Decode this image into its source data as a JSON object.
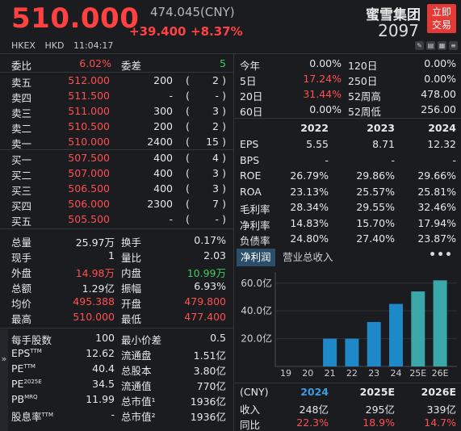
{
  "header": {
    "last_price": "510.000",
    "ref_price": "474.045(CNY)",
    "change_abs": "+39.400",
    "change_pct": "+8.37%",
    "stock_name": "蜜雪集团",
    "stock_code": "2097",
    "trade_button_line1": "立即",
    "trade_button_line2": "交易",
    "market": "HKEX",
    "currency": "HKD",
    "time": "11:04:17",
    "icons": [
      "edit-icon",
      "chart-icon",
      "grid-icon",
      "list-icon"
    ]
  },
  "order_book": {
    "commission_ratio_label": "委比",
    "commission_ratio_value": "6.02%",
    "commission_diff_label": "委差",
    "commission_diff_value": "5",
    "asks": [
      {
        "label": "卖五",
        "price": "512.000",
        "volume": "200",
        "open": "(",
        "count": "2",
        "close": ")"
      },
      {
        "label": "卖四",
        "price": "511.500",
        "volume": "-",
        "open": "(",
        "count": "-",
        "close": ")"
      },
      {
        "label": "卖三",
        "price": "511.000",
        "volume": "300",
        "open": "(",
        "count": "3",
        "close": ")"
      },
      {
        "label": "卖二",
        "price": "510.500",
        "volume": "200",
        "open": "(",
        "count": "2",
        "close": ")"
      },
      {
        "label": "卖一",
        "price": "510.000",
        "volume": "2400",
        "open": "(",
        "count": "15",
        "close": ")"
      }
    ],
    "bids": [
      {
        "label": "买一",
        "price": "507.500",
        "volume": "400",
        "open": "(",
        "count": "4",
        "close": ")"
      },
      {
        "label": "买二",
        "price": "507.000",
        "volume": "400",
        "open": "(",
        "count": "3",
        "close": ")"
      },
      {
        "label": "买三",
        "price": "506.500",
        "volume": "400",
        "open": "(",
        "count": "3",
        "close": ")"
      },
      {
        "label": "买四",
        "price": "506.000",
        "volume": "2300",
        "open": "(",
        "count": "7",
        "close": ")"
      },
      {
        "label": "买五",
        "price": "505.500",
        "volume": "-",
        "open": "(",
        "count": "-",
        "close": ")"
      }
    ]
  },
  "stats": [
    {
      "l1": "总量",
      "v1": "25.97万",
      "c1": "white",
      "l2": "换手",
      "v2": "0.17%",
      "c2": "white"
    },
    {
      "l1": "现手",
      "v1": "1",
      "c1": "white",
      "l2": "量比",
      "v2": "2.03",
      "c2": "white"
    },
    {
      "l1": "外盘",
      "v1": "14.98万",
      "c1": "red",
      "l2": "内盘",
      "v2": "10.99万",
      "c2": "green"
    },
    {
      "l1": "总额",
      "v1": "1.29亿",
      "c1": "white",
      "l2": "振幅",
      "v2": "6.93%",
      "c2": "white"
    },
    {
      "l1": "均价",
      "v1": "495.388",
      "c1": "red",
      "l2": "开盘",
      "v2": "479.800",
      "c2": "red"
    },
    {
      "l1": "最高",
      "v1": "510.000",
      "c1": "red",
      "l2": "最低",
      "v2": "477.400",
      "c2": "red"
    }
  ],
  "fundamentals": [
    {
      "l1": "每手股数",
      "v1": "100",
      "l2": "最小价差",
      "v2": "0.5"
    },
    {
      "l1": "EPS",
      "s1": "TTM",
      "v1": "12.62",
      "l2": "流通盘",
      "v2": "1.51亿"
    },
    {
      "l1": "PE",
      "s1": "TTM",
      "v1": "40.4",
      "l2": "总股本",
      "v2": "3.80亿"
    },
    {
      "l1": "PE",
      "s1": "2025E",
      "v1": "34.5",
      "l2": "流通值",
      "v2": "770亿"
    },
    {
      "l1": "PB",
      "s1": "MRQ",
      "v1": "11.99",
      "l2": "总市值¹",
      "v2": "1936亿"
    },
    {
      "l1": "股息率",
      "s1": "TTM",
      "v1": "-",
      "l2": "总市值²",
      "v2": "1936亿"
    }
  ],
  "performance": [
    {
      "l1": "今年",
      "v1": "0.00%",
      "c1": "white",
      "l2": "120日",
      "v2": "0.00%"
    },
    {
      "l1": "5日",
      "v1": "17.24%",
      "c1": "red",
      "l2": "250日",
      "v2": "0.00%"
    },
    {
      "l1": "20日",
      "v1": "31.44%",
      "c1": "red",
      "l2": "52周高",
      "v2": "478.00"
    },
    {
      "l1": "60日",
      "v1": "0.00%",
      "c1": "white",
      "l2": "52周低",
      "v2": "256.00"
    }
  ],
  "financials": {
    "years": [
      "2022",
      "2023",
      "2024"
    ],
    "rows": [
      {
        "label": "EPS",
        "values": [
          "5.55",
          "8.71",
          "12.32"
        ]
      },
      {
        "label": "BPS",
        "values": [
          "-",
          "-",
          "-"
        ]
      },
      {
        "label": "ROE",
        "values": [
          "26.79%",
          "29.86%",
          "29.66%"
        ]
      },
      {
        "label": "ROA",
        "values": [
          "23.13%",
          "25.57%",
          "25.81%"
        ]
      },
      {
        "label": "毛利率",
        "values": [
          "28.34%",
          "29.55%",
          "32.46%"
        ]
      },
      {
        "label": "净利率",
        "values": [
          "14.83%",
          "15.70%",
          "17.94%"
        ]
      },
      {
        "label": "负债率",
        "values": [
          "24.80%",
          "27.40%",
          "23.87%"
        ]
      }
    ]
  },
  "tabs": {
    "active": "净利润",
    "other": "营业总收入",
    "more": "•••"
  },
  "chart_data": {
    "type": "bar",
    "categories": [
      "19",
      "20",
      "21",
      "22",
      "23",
      "24",
      "25E",
      "26E"
    ],
    "values": [
      null,
      null,
      20,
      20,
      32,
      45,
      54,
      62
    ],
    "estimate": [
      false,
      false,
      false,
      false,
      false,
      false,
      true,
      true
    ],
    "yticks": [
      "20.0亿",
      "40.0亿",
      "60.0亿"
    ],
    "ytick_values": [
      20,
      40,
      60
    ],
    "ylim": [
      0,
      68
    ],
    "colors": {
      "actual": "#1e88c8",
      "estimate": "#3aa8a8"
    }
  },
  "revenue_table": {
    "currency": "(CNY)",
    "years": [
      "2024",
      "2025E",
      "2026E"
    ],
    "revenue_label": "收入",
    "revenue": [
      "248亿",
      "295亿",
      "339亿"
    ],
    "yoy_label": "同比",
    "yoy": [
      "22.3%",
      "18.9%",
      "14.7%"
    ]
  },
  "side_strip": {
    "expand": "»"
  }
}
